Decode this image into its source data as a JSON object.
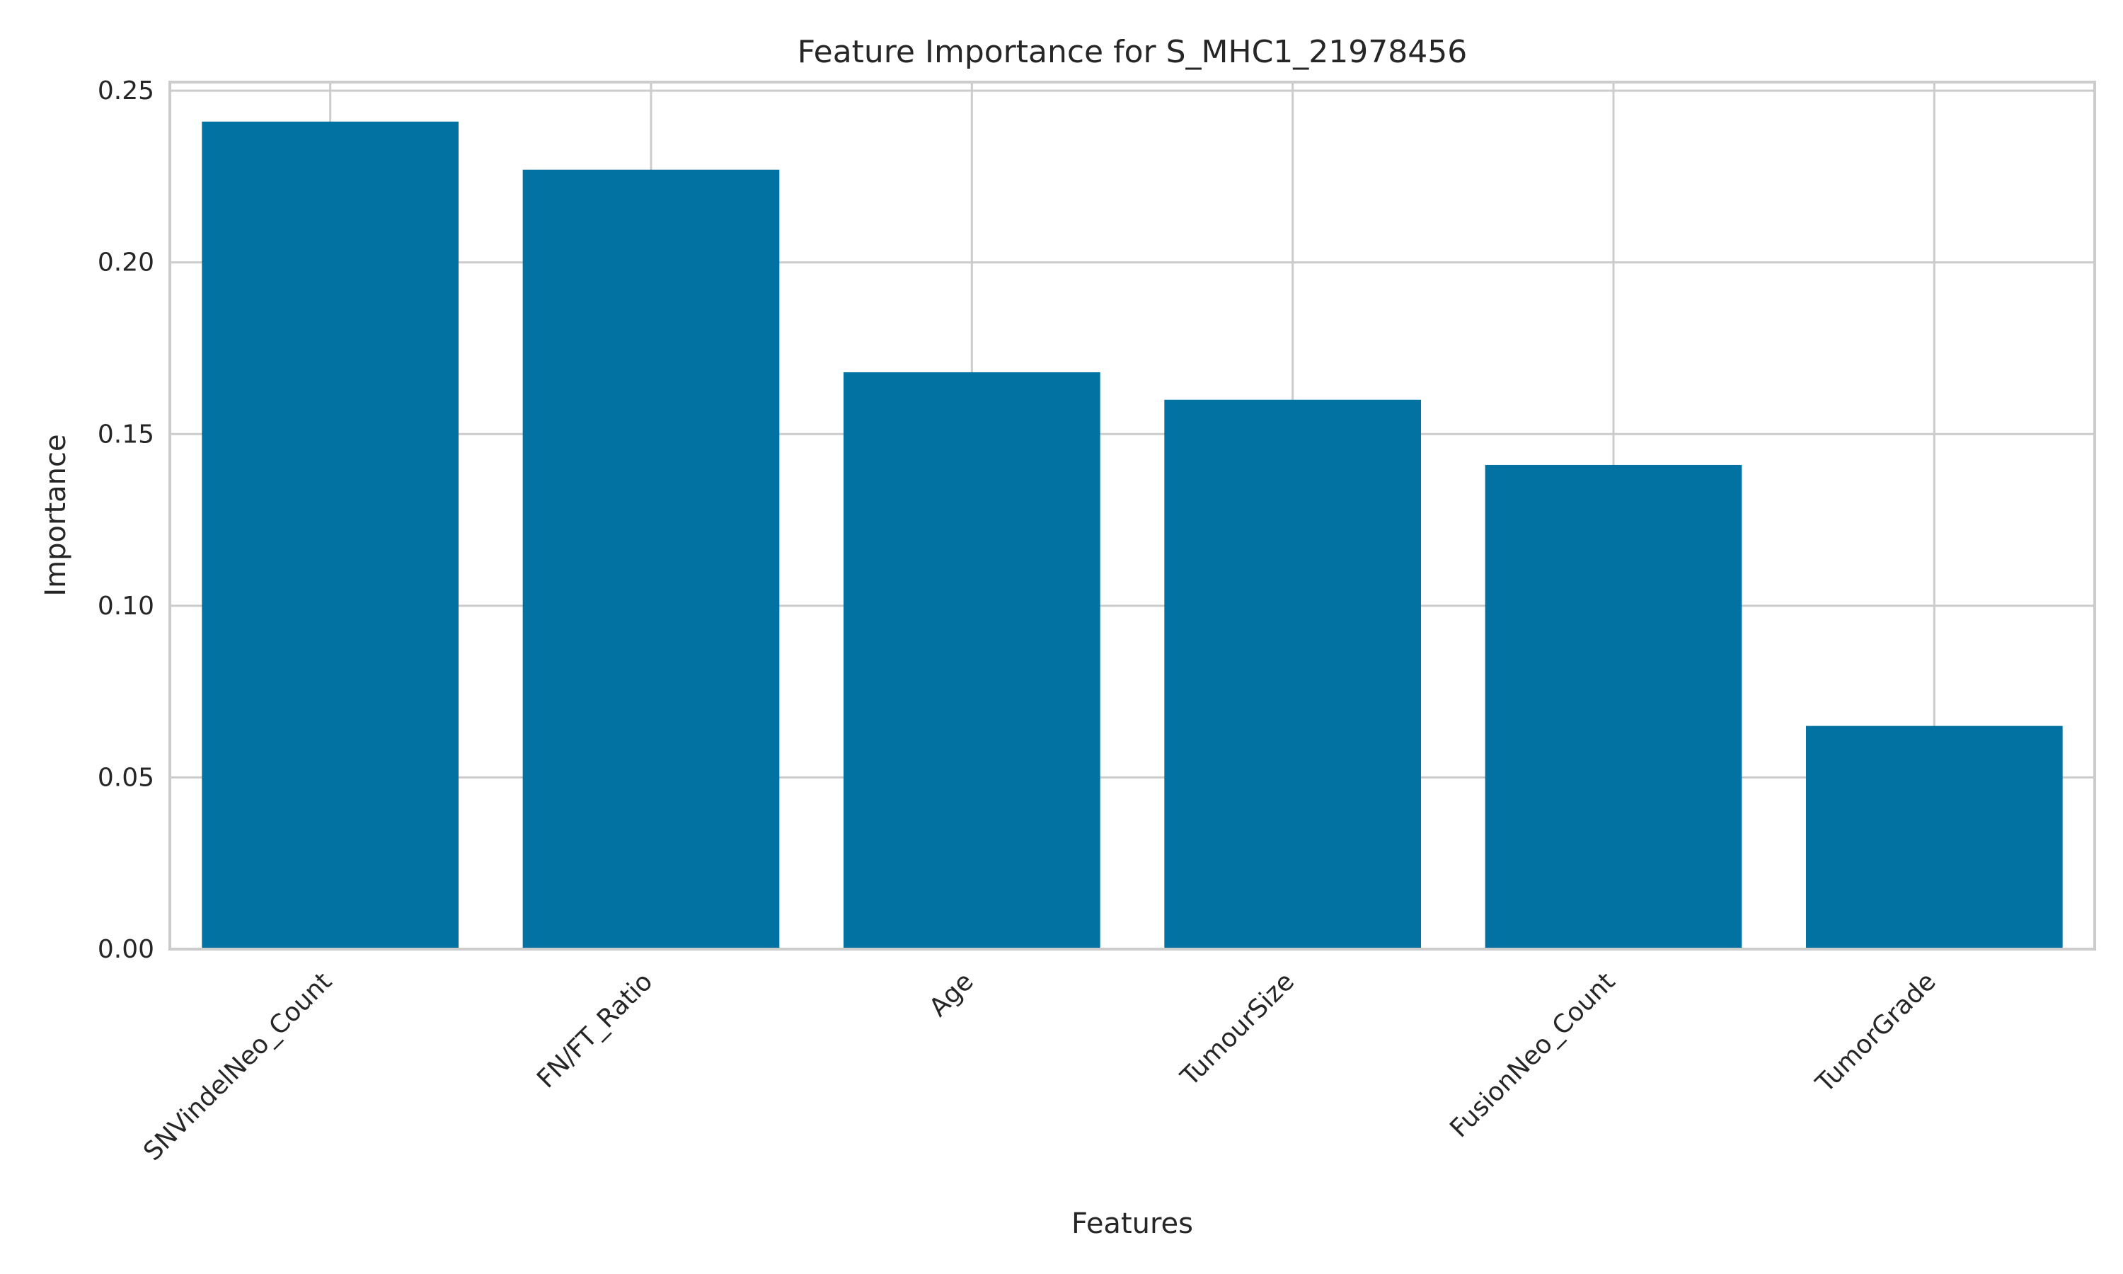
{
  "chart_data": {
    "type": "bar",
    "title": "Feature Importance for S_MHC1_21978456",
    "xlabel": "Features",
    "ylabel": "Importance",
    "categories": [
      "SNVindelNeo_Count",
      "FN/FT_Ratio",
      "Age",
      "TumourSize",
      "FusionNeo_Count",
      "TumorGrade"
    ],
    "values": [
      0.241,
      0.227,
      0.168,
      0.16,
      0.141,
      0.065
    ],
    "ylim": [
      0,
      0.2525
    ],
    "yticks": [
      "0.00",
      "0.05",
      "0.10",
      "0.15",
      "0.20",
      "0.25"
    ],
    "grid": true,
    "bar_color": "#0272a2",
    "grid_color": "#cccccc"
  }
}
